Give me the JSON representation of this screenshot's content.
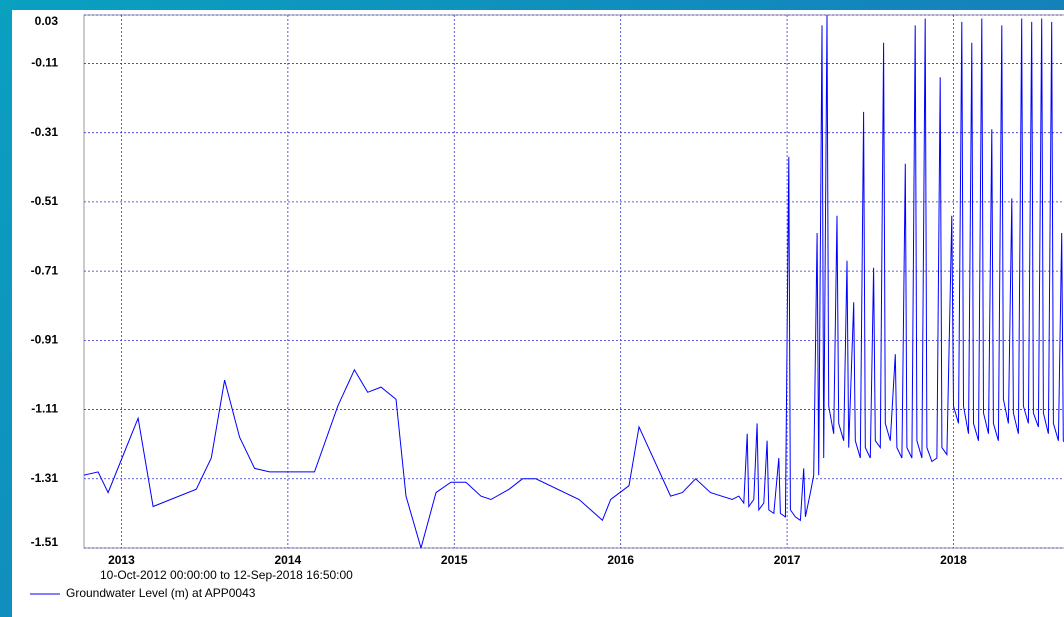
{
  "chart_data": {
    "type": "line",
    "subtitle": "10-Oct-2012 00:00:00 to 12-Sep-2018 16:50:00",
    "x": [
      2012.77,
      2012.86,
      2012.92,
      2013.1,
      2013.19,
      2013.45,
      2013.54,
      2013.62,
      2013.71,
      2013.8,
      2013.89,
      2014.01,
      2014.16,
      2014.3,
      2014.4,
      2014.48,
      2014.56,
      2014.65,
      2014.71,
      2014.8,
      2014.89,
      2014.98,
      2015.07,
      2015.16,
      2015.22,
      2015.33,
      2015.41,
      2015.49,
      2015.75,
      2015.89,
      2015.94,
      2016.05,
      2016.11,
      2016.3,
      2016.37,
      2016.45,
      2016.54,
      2016.67,
      2016.71,
      2016.74,
      2016.76,
      2016.77,
      2016.8,
      2016.82,
      2016.83,
      2016.86,
      2016.88,
      2016.89,
      2016.92,
      2016.95,
      2016.96,
      2016.99,
      2017.01,
      2017.02,
      2017.05,
      2017.08,
      2017.1,
      2017.11,
      2017.14,
      2017.16,
      2017.18,
      2017.19,
      2017.21,
      2017.22,
      2017.24,
      2017.25,
      2017.28,
      2017.3,
      2017.31,
      2017.34,
      2017.36,
      2017.37,
      2017.4,
      2017.41,
      2017.44,
      2017.46,
      2017.47,
      2017.5,
      2017.52,
      2017.53,
      2017.56,
      2017.58,
      2017.59,
      2017.62,
      2017.65,
      2017.66,
      2017.69,
      2017.71,
      2017.72,
      2017.75,
      2017.77,
      2017.78,
      2017.81,
      2017.83,
      2017.84,
      2017.87,
      2017.9,
      2017.92,
      2017.93,
      2017.96,
      2017.99,
      2018.0,
      2018.03,
      2018.05,
      2018.06,
      2018.09,
      2018.11,
      2018.12,
      2018.15,
      2018.17,
      2018.18,
      2018.21,
      2018.23,
      2018.24,
      2018.27,
      2018.29,
      2018.3,
      2018.33,
      2018.35,
      2018.36,
      2018.39,
      2018.41,
      2018.42,
      2018.45,
      2018.47,
      2018.48,
      2018.51,
      2018.53,
      2018.54,
      2018.57,
      2018.59,
      2018.6,
      2018.63,
      2018.65,
      2018.66,
      2018.69
    ],
    "series": [
      {
        "name": "Groundwater Level (m) at APP0043",
        "color": "#0000ff",
        "values": [
          -1.3,
          -1.29,
          -1.35,
          -1.135,
          -1.39,
          -1.34,
          -1.25,
          -1.025,
          -1.19,
          -1.28,
          -1.29,
          -1.29,
          -1.29,
          -1.1,
          -0.995,
          -1.06,
          -1.045,
          -1.08,
          -1.36,
          -1.51,
          -1.35,
          -1.32,
          -1.32,
          -1.36,
          -1.37,
          -1.34,
          -1.31,
          -1.31,
          -1.37,
          -1.43,
          -1.37,
          -1.33,
          -1.16,
          -1.36,
          -1.35,
          -1.31,
          -1.35,
          -1.37,
          -1.36,
          -1.38,
          -1.18,
          -1.39,
          -1.37,
          -1.15,
          -1.4,
          -1.38,
          -1.2,
          -1.4,
          -1.41,
          -1.25,
          -1.41,
          -1.42,
          -0.38,
          -1.4,
          -1.42,
          -1.43,
          -1.28,
          -1.42,
          -1.35,
          -1.3,
          -0.6,
          -1.3,
          0.0,
          -1.25,
          0.03,
          -1.1,
          -1.18,
          -0.55,
          -1.15,
          -1.2,
          -0.68,
          -1.22,
          -0.8,
          -1.2,
          -1.25,
          -0.25,
          -1.22,
          -1.25,
          -0.7,
          -1.2,
          -1.22,
          -0.05,
          -1.15,
          -1.2,
          -0.95,
          -1.22,
          -1.25,
          -0.4,
          -1.22,
          -1.25,
          0.0,
          -1.2,
          -1.25,
          0.02,
          -1.22,
          -1.26,
          -1.25,
          -0.15,
          -1.22,
          -1.24,
          -0.55,
          -1.1,
          -1.15,
          0.01,
          -1.1,
          -1.18,
          -0.05,
          -1.15,
          -1.2,
          0.02,
          -1.12,
          -1.18,
          -0.3,
          -1.15,
          -1.2,
          0.0,
          -1.08,
          -1.15,
          -0.5,
          -1.12,
          -1.18,
          0.02,
          -1.1,
          -1.15,
          0.01,
          -1.12,
          -1.16,
          0.02,
          -1.12,
          -1.18,
          0.01,
          -1.15,
          -1.2,
          -0.6,
          -1.2,
          -1.22
        ]
      }
    ],
    "xlim": [
      2012.775,
      2018.7
    ],
    "xticks": [
      2013,
      2014,
      2015,
      2016,
      2017,
      2018
    ],
    "ylim": [
      -1.51,
      0.03
    ],
    "yticks": [
      0.03,
      -0.11,
      -0.31,
      -0.51,
      -0.71,
      -0.91,
      -1.11,
      -1.31,
      -1.51
    ],
    "grid": true,
    "legend_position": "bottom-left"
  }
}
